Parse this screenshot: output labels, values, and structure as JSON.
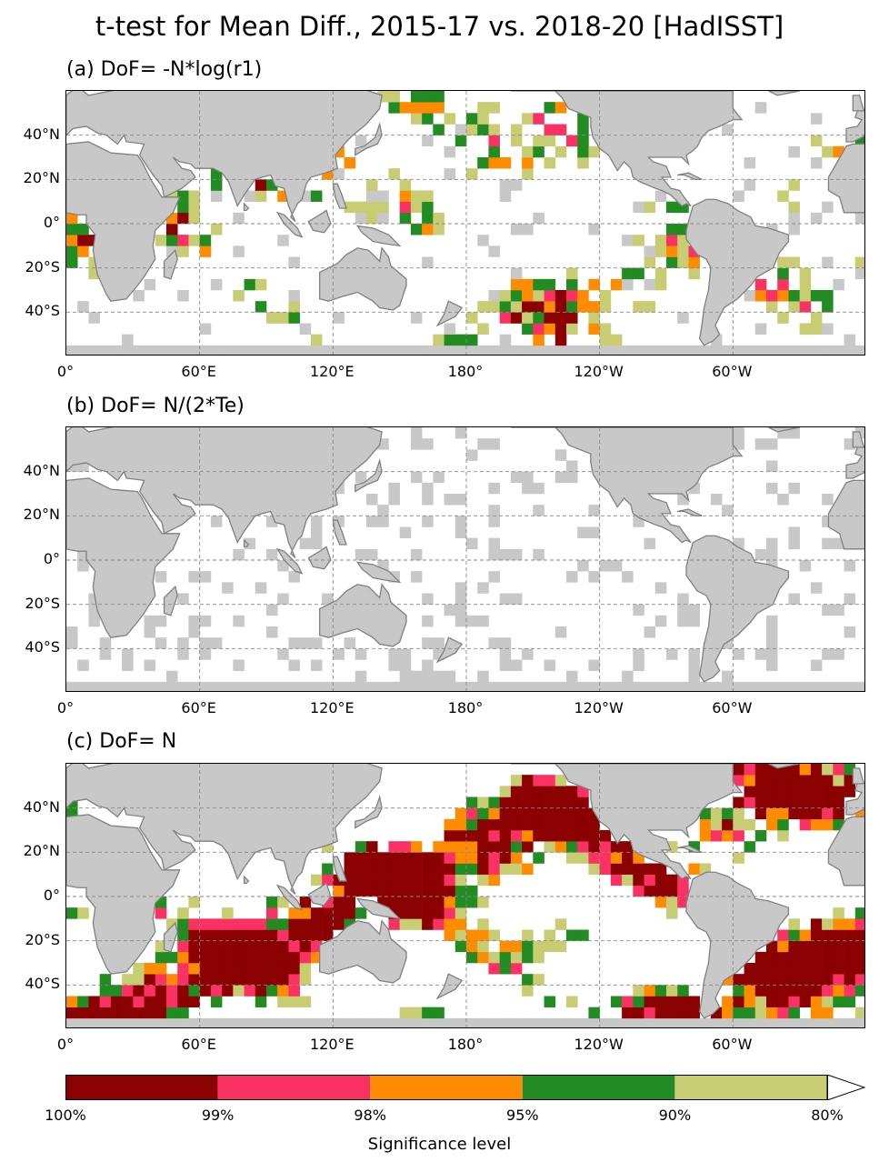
{
  "title": "t-test for Mean Diff., 2015-17 vs. 2018-20 [HadISST]",
  "panels": [
    {
      "label": "(a) DoF= -N*log(r1)",
      "signal": 1.0
    },
    {
      "label": "(b) DoF= N/(2*Te)",
      "signal": 0.35
    },
    {
      "label": "(c) DoF= N",
      "signal": 1.75
    }
  ],
  "axes": {
    "lat_ticks": [
      "40°N",
      "20°N",
      "0°",
      "20°S",
      "40°S"
    ],
    "lon_ticks": [
      "0°",
      "60°E",
      "120°E",
      "180°",
      "120°W",
      "60°W"
    ],
    "lon_range": [
      0,
      360
    ],
    "lat_range": [
      -60,
      60
    ],
    "grid": true
  },
  "colorbar": {
    "title": "Significance level",
    "labels": [
      "100%",
      "99%",
      "98%",
      "95%",
      "90%",
      "80%"
    ],
    "colors": [
      "#8b0000",
      "#fa3264",
      "#ff8c00",
      "#228b22",
      "#c8cc72"
    ],
    "extend": "right"
  },
  "colors": {
    "land": "#c8c8c8",
    "missing": "#c8c8c8",
    "coast": "#808080"
  }
}
